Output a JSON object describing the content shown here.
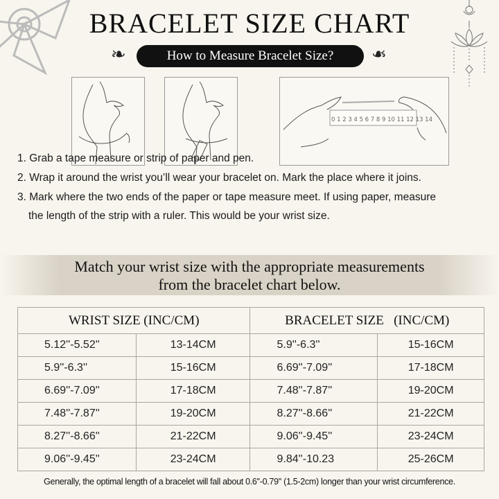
{
  "header": {
    "title": "BRACELET SIZE CHART",
    "subtitle": "How to Measure Bracelet Size?"
  },
  "illustrations": [
    {
      "icon": "hand-wrist-tape-icon"
    },
    {
      "icon": "hand-wrist-paper-roll-icon"
    },
    {
      "icon": "hands-ruler-icon",
      "ruler_numbers": "0 1 2 3 4 5 6 7 8 9 10 11 12 13 14"
    }
  ],
  "steps": [
    "1. Grab a tape measure or strip of paper and pen.",
    "2. Wrap it around the wrist you’ll wear your bracelet on. Mark the place where it joins.",
    "3. Mark where the two ends of the paper or tape measure meet. If using paper, measure",
    "the length of the strip with a ruler. This would be your wrist size."
  ],
  "banner": {
    "line1": "Match your wrist size with the appropriate measurements",
    "line2": "from the bracelet chart below."
  },
  "table": {
    "headers": [
      "WRIST SIZE (INC/CM)",
      "BRACELET SIZE   (INC/CM)"
    ],
    "rows": [
      [
        "5.12''-5.52''",
        "13-14CM",
        "5.9''-6.3''",
        "15-16CM"
      ],
      [
        "5.9''-6.3''",
        "15-16CM",
        "6.69''-7.09''",
        "17-18CM"
      ],
      [
        "6.69''-7.09''",
        "17-18CM",
        "7.48''-7.87''",
        "19-20CM"
      ],
      [
        "7.48''-7.87''",
        "19-20CM",
        "8.27''-8.66''",
        "21-22CM"
      ],
      [
        "8.27''-8.66''",
        "21-22CM",
        "9.06''-9.45''",
        "23-24CM"
      ],
      [
        "9.06''-9.45''",
        "23-24CM",
        "9.84''-10.23",
        "25-26CM"
      ]
    ]
  },
  "note": "Generally, the optimal length of a bracelet will fall about 0.6''-0.79'' (1.5-2cm) longer than your wrist circumference.",
  "colors": {
    "background": "#f8f5ee",
    "pill": "#111111",
    "band": "#d9d2c6",
    "border": "#a9a6a0"
  }
}
